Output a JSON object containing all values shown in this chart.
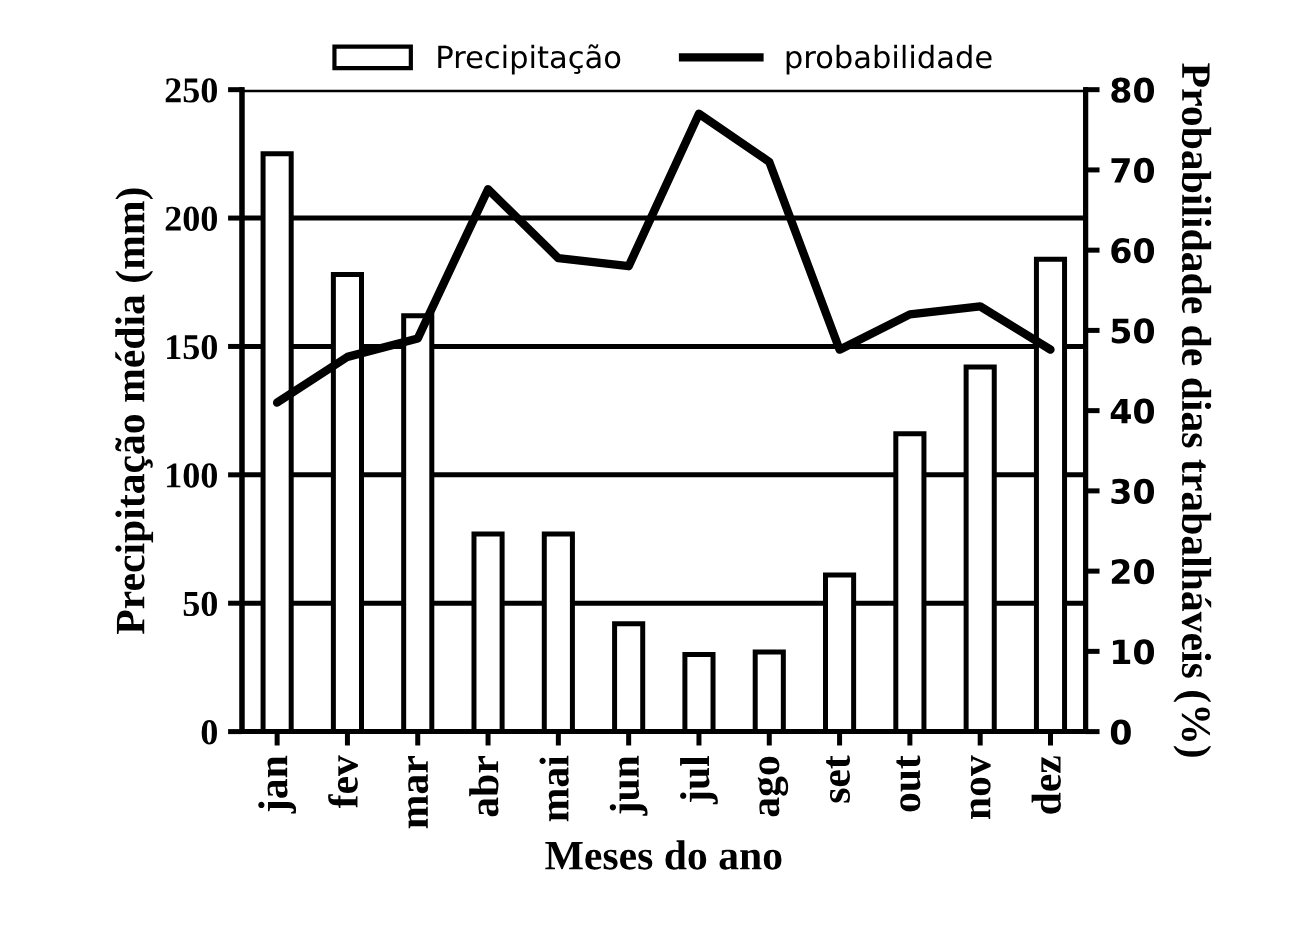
{
  "chart_data": {
    "type": "bar",
    "xlabel": "Meses do ano",
    "ylabel": "Precipitação média (mm)",
    "y2label": "Probabilidade de dias trabalháveis (%)",
    "categories": [
      "jan",
      "fev",
      "mar",
      "abr",
      "mai",
      "jun",
      "jul",
      "ago",
      "set",
      "out",
      "nov",
      "dez"
    ],
    "series": [
      {
        "name": "Precipitação",
        "color": "#ffffff",
        "values": [
          225,
          178,
          162,
          77,
          77,
          42,
          30,
          31,
          61,
          116,
          142,
          184
        ]
      },
      {
        "name": "probabilidade",
        "type": "line",
        "axis": "y2",
        "color": "#000000",
        "values": [
          41,
          46.7,
          49,
          67.6,
          59,
          58,
          77,
          71,
          47.6,
          52,
          53,
          47.6
        ]
      }
    ],
    "ylim": [
      0,
      250
    ],
    "yticks": [
      0,
      50,
      100,
      150,
      200,
      250
    ],
    "y2lim": [
      0,
      80
    ],
    "y2ticks": [
      0,
      10,
      20,
      30,
      40,
      50,
      60,
      70,
      80
    ],
    "grid": "y",
    "legend": "top",
    "marker": "none",
    "line_style": "solid"
  }
}
